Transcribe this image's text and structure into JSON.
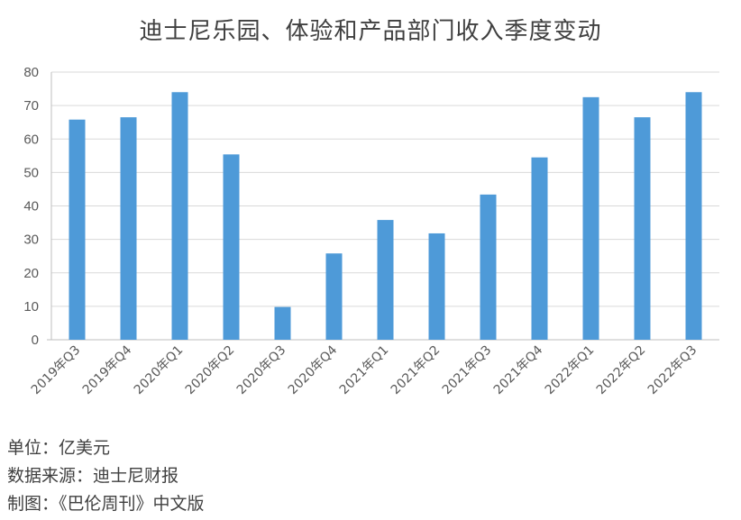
{
  "chart_data": {
    "type": "bar",
    "title": "迪士尼乐园、体验和产品部门收入季度变动",
    "categories": [
      "2019年Q3",
      "2019年Q4",
      "2020年Q1",
      "2020年Q2",
      "2020年Q3",
      "2020年Q4",
      "2021年Q1",
      "2021年Q2",
      "2021年Q3",
      "2021年Q4",
      "2022年Q1",
      "2022年Q2",
      "2022年Q3"
    ],
    "values": [
      65.8,
      66.5,
      74.0,
      55.4,
      9.8,
      25.8,
      35.8,
      31.8,
      43.4,
      54.5,
      72.5,
      66.5,
      74.0
    ],
    "ylim": [
      0,
      80
    ],
    "yticks": [
      0,
      10,
      20,
      30,
      40,
      50,
      60,
      70,
      80
    ],
    "xlabel": "",
    "ylabel": "",
    "grid": true,
    "bar_color": "#4e9ad8",
    "grid_color": "#d9d9d9"
  },
  "footnotes": {
    "unit": "单位：亿美元",
    "source": "数据来源：迪士尼财报",
    "credit": "制图：《巴伦周刊》中文版"
  }
}
